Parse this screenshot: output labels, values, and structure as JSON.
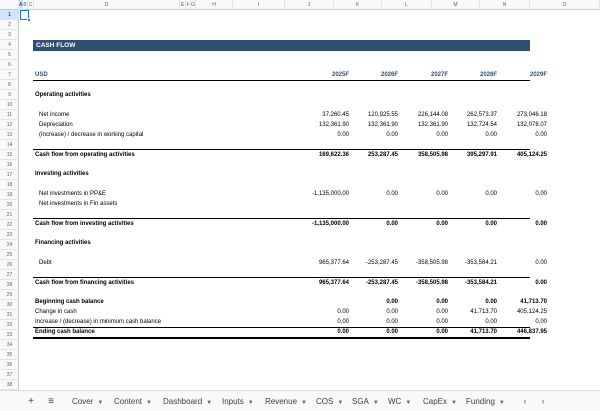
{
  "columns": [
    "A",
    "B",
    "C",
    "D",
    "E",
    "F",
    "G",
    "H",
    "I",
    "J",
    "K",
    "L",
    "M",
    "N",
    "O"
  ],
  "section": {
    "title": "CASH FLOW",
    "currency": "USD",
    "years": [
      "2025F",
      "2026F",
      "2027F",
      "2028F",
      "2029F"
    ]
  },
  "operating": {
    "title": "Operating activities",
    "net_income": {
      "label": "Net income",
      "values": [
        "37,260.45",
        "120,925.55",
        "226,144.08",
        "262,573.37",
        "273,046.18"
      ]
    },
    "depreciation": {
      "label": "Depreciation",
      "values": [
        "132,361.90",
        "132,361.90",
        "132,361.90",
        "132,724.54",
        "132,078.07"
      ]
    },
    "working_capital": {
      "label": "(Increase) / decrease in working capital",
      "values": [
        "0.00",
        "0.00",
        "0.00",
        "0.00",
        "0.00"
      ]
    },
    "total": {
      "label": "Cash flow from operating activities",
      "values": [
        "169,622.36",
        "253,287.45",
        "358,505.98",
        "395,297.91",
        "405,124.25"
      ]
    }
  },
  "investing": {
    "title": "Investing activities",
    "ppe": {
      "label": "Net investments in PP&E",
      "values": [
        "-1,135,000.00",
        "0.00",
        "0.00",
        "0.00",
        "0.00"
      ]
    },
    "fin_assets": {
      "label": "Net investments in Fin assets",
      "values": [
        "",
        "",
        "",
        "",
        ""
      ]
    },
    "total": {
      "label": "Cash flow from investing activities",
      "values": [
        "-1,135,000.00",
        "0.00",
        "0.00",
        "0.00",
        "0.00"
      ]
    }
  },
  "financing": {
    "title": "Financing activities",
    "debt": {
      "label": "Debt",
      "values": [
        "965,377.64",
        "-253,287.45",
        "-358,505.98",
        "-353,584.21",
        "0.00"
      ]
    },
    "total": {
      "label": "Cash flow from financing activities",
      "values": [
        "965,377.64",
        "-253,287.45",
        "-358,505.98",
        "-353,584.21",
        "0.00"
      ]
    }
  },
  "balance": {
    "beginning": {
      "label": "Beginning cash balance",
      "values": [
        "",
        "0.00",
        "0.00",
        "0.00",
        "41,713.70"
      ]
    },
    "change": {
      "label": "Change in cash",
      "values": [
        "0.00",
        "0.00",
        "0.00",
        "41,713.70",
        "405,124.25"
      ]
    },
    "min_cash": {
      "label": "Increase / (decrease) in minimum cash balance",
      "values": [
        "0.00",
        "0.00",
        "0.00",
        "0.00",
        "0.00"
      ]
    },
    "ending": {
      "label": "Ending cash balance",
      "values": [
        "0.00",
        "0.00",
        "0.00",
        "41,713.70",
        "446,837.95"
      ]
    }
  },
  "tabs": [
    "Cover",
    "Content",
    "Dashboard",
    "Inputs",
    "Revenue",
    "COS",
    "SGA",
    "WC",
    "CapEx",
    "Funding"
  ],
  "tab_controls": {
    "add": "+",
    "menu": "≡",
    "prev": "‹",
    "next": "›"
  }
}
